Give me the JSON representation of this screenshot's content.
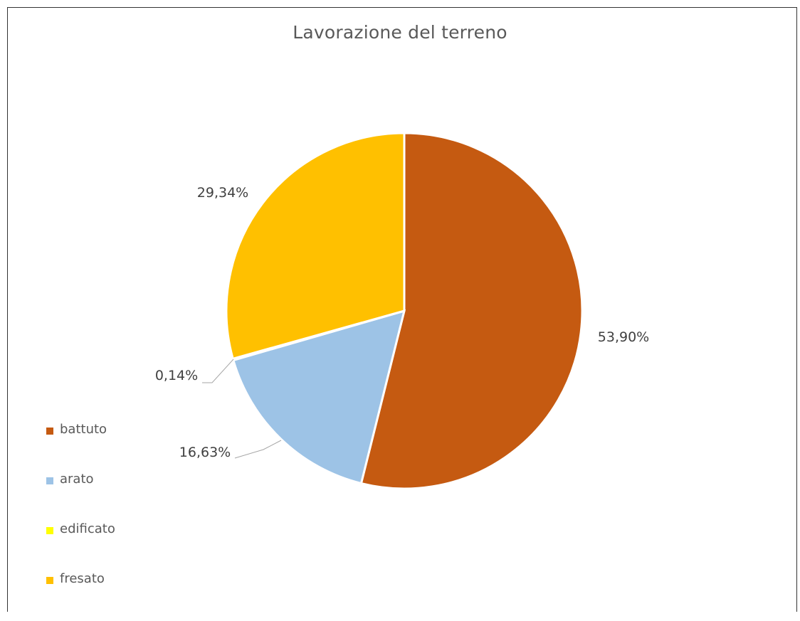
{
  "chart_data": {
    "type": "pie",
    "title": "Lavorazione del terreno",
    "categories": [
      "battuto",
      "arato",
      "edificato",
      "fresato"
    ],
    "values": [
      53.9,
      16.63,
      0.14,
      29.34
    ],
    "data_labels": [
      "53,90%",
      "16,63%",
      "0,14%",
      "29,34%"
    ],
    "colors": [
      "#C55A11",
      "#9DC3E6",
      "#FFFF00",
      "#FFC000"
    ],
    "start_angle_deg": 0,
    "direction": "clockwise",
    "legend_position": "left-bottom"
  }
}
